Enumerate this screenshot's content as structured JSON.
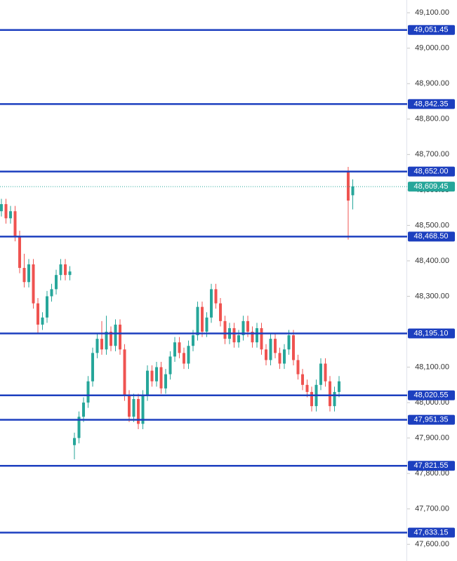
{
  "chart_data": {
    "type": "candlestick",
    "categories": [
      null,
      null,
      null,
      null,
      null,
      null,
      null,
      null,
      null,
      null,
      null,
      null,
      null,
      null,
      null,
      null,
      null,
      null,
      null,
      null,
      null,
      null,
      null,
      null,
      null,
      null,
      null,
      null,
      null,
      null,
      null,
      null,
      null,
      null,
      null,
      null,
      null,
      null,
      null,
      null,
      null,
      null,
      null,
      null,
      null,
      null,
      null,
      null,
      null,
      null,
      null,
      null,
      null,
      null,
      null,
      null,
      null,
      null,
      null,
      null,
      null,
      null,
      null,
      null,
      null,
      null,
      null,
      null,
      null,
      null,
      null,
      null,
      null,
      null,
      null,
      null,
      null,
      null
    ],
    "open": [
      48540,
      48560,
      48520,
      48540,
      48470,
      48380,
      48340,
      48390,
      48280,
      48220,
      48240,
      48300,
      48320,
      48360,
      48390,
      48360,
      47880,
      47900,
      47960,
      48000,
      48060,
      48140,
      48180,
      48150,
      48200,
      48160,
      48220,
      48150,
      48020,
      47960,
      48010,
      47940,
      48020,
      48090,
      48060,
      48100,
      48040,
      48080,
      48130,
      48170,
      48140,
      48110,
      48160,
      48190,
      48270,
      48200,
      48240,
      48320,
      48280,
      48230,
      48180,
      48210,
      48170,
      48190,
      48230,
      48200,
      48170,
      48210,
      48150,
      48120,
      48180,
      48140,
      48110,
      48150,
      48190,
      48120,
      48080,
      48050,
      48030,
      47990,
      48050,
      48110,
      48060,
      47990,
      48030,
      null,
      48650,
      48585
    ],
    "high": [
      48575,
      48575,
      48555,
      48555,
      48485,
      48420,
      48405,
      48405,
      48295,
      48255,
      48315,
      48335,
      48375,
      48405,
      48405,
      48385,
      47915,
      47975,
      48015,
      48075,
      48155,
      48195,
      48230,
      48245,
      48215,
      48235,
      48235,
      48165,
      48035,
      48025,
      48025,
      48035,
      48105,
      48105,
      48115,
      48115,
      48095,
      48145,
      48185,
      48185,
      48155,
      48175,
      48205,
      48285,
      48285,
      48255,
      48335,
      48335,
      48295,
      48245,
      48225,
      48225,
      48205,
      48245,
      48245,
      48215,
      48225,
      48225,
      48165,
      48195,
      48195,
      48155,
      48165,
      48205,
      48205,
      48135,
      48095,
      48065,
      48045,
      48065,
      48125,
      48125,
      48075,
      48045,
      48075,
      null,
      48665,
      48630
    ],
    "low": [
      48525,
      48505,
      48505,
      48455,
      48365,
      48325,
      48325,
      48265,
      48195,
      48205,
      48225,
      48285,
      48305,
      48345,
      48345,
      48345,
      47840,
      47885,
      47945,
      47985,
      48045,
      48125,
      48135,
      48135,
      48145,
      48145,
      48135,
      48005,
      47945,
      47945,
      47925,
      47925,
      48005,
      48045,
      48045,
      48025,
      48025,
      48065,
      48115,
      48125,
      48095,
      48095,
      48145,
      48175,
      48185,
      48185,
      48225,
      48265,
      48215,
      48165,
      48165,
      48155,
      48155,
      48175,
      48185,
      48155,
      48155,
      48135,
      48105,
      48105,
      48125,
      48095,
      48095,
      48135,
      48105,
      48065,
      48035,
      48015,
      47975,
      47975,
      48035,
      48045,
      47975,
      47975,
      48015,
      null,
      48460,
      48545
    ],
    "close": [
      48560,
      48520,
      48540,
      48470,
      48380,
      48340,
      48390,
      48280,
      48220,
      48240,
      48300,
      48320,
      48360,
      48390,
      48360,
      48370,
      47900,
      47960,
      48000,
      48060,
      48140,
      48180,
      48150,
      48200,
      48160,
      48220,
      48150,
      48020,
      47960,
      48010,
      47940,
      48020,
      48090,
      48060,
      48100,
      48040,
      48080,
      48130,
      48170,
      48140,
      48110,
      48160,
      48190,
      48270,
      48200,
      48240,
      48320,
      48280,
      48230,
      48180,
      48210,
      48170,
      48190,
      48230,
      48200,
      48170,
      48210,
      48150,
      48120,
      48180,
      48140,
      48110,
      48150,
      48190,
      48120,
      48080,
      48050,
      48030,
      47990,
      48050,
      48110,
      48060,
      47990,
      48030,
      48060,
      null,
      48570,
      48610
    ],
    "up_color": "#26a69a",
    "down_color": "#ef5350",
    "ylim": [
      47553,
      49136
    ],
    "yticks": [
      {
        "value": 47600,
        "label": "47,600.00"
      },
      {
        "value": 47700,
        "label": "47,700.00"
      },
      {
        "value": 47800,
        "label": "47,800.00"
      },
      {
        "value": 47900,
        "label": "47,900.00"
      },
      {
        "value": 48000,
        "label": "48,000.00"
      },
      {
        "value": 48100,
        "label": "48,100.00"
      },
      {
        "value": 48200,
        "label": "48,200.00"
      },
      {
        "value": 48300,
        "label": "48,300.00"
      },
      {
        "value": 48400,
        "label": "48,400.00"
      },
      {
        "value": 48500,
        "label": "48,500.00"
      },
      {
        "value": 48600,
        "label": "48,600.00"
      },
      {
        "value": 48700,
        "label": "48,700.00"
      },
      {
        "value": 48800,
        "label": "48,800.00"
      },
      {
        "value": 48900,
        "label": "48,900.00"
      },
      {
        "value": 49000,
        "label": "49,000.00"
      },
      {
        "value": 49100,
        "label": "49,100.00"
      }
    ],
    "levels": [
      {
        "value": 49051.45,
        "label": "49,051.45"
      },
      {
        "value": 48842.35,
        "label": "48,842.35"
      },
      {
        "value": 48652.0,
        "label": "48,652.00"
      },
      {
        "value": 48468.5,
        "label": "48,468.50"
      },
      {
        "value": 48195.1,
        "label": "48,195.10"
      },
      {
        "value": 48020.55,
        "label": "48,020.55"
      },
      {
        "value": 47951.35,
        "label": "47,951.35"
      },
      {
        "value": 47821.55,
        "label": "47,821.55"
      },
      {
        "value": 47633.15,
        "label": "47,633.15"
      }
    ],
    "level_color": "#1c3fbf",
    "last_price": {
      "value": 48609.45,
      "label": "48,609.45"
    },
    "last_price_color": "#26a69a"
  }
}
